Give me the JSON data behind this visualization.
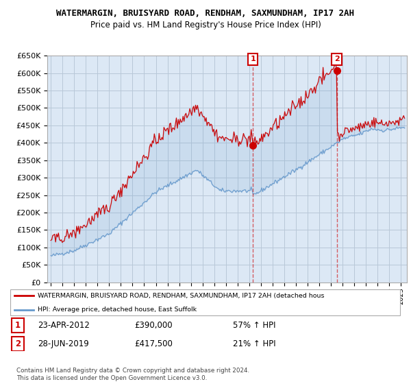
{
  "title": "WATERMARGIN, BRUISYARD ROAD, RENDHAM, SAXMUNDHAM, IP17 2AH",
  "subtitle": "Price paid vs. HM Land Registry's House Price Index (HPI)",
  "ylim": [
    0,
    650000
  ],
  "yticks": [
    0,
    50000,
    100000,
    150000,
    200000,
    250000,
    300000,
    350000,
    400000,
    450000,
    500000,
    550000,
    600000,
    650000
  ],
  "bg_color": "#ffffff",
  "plot_bg_color": "#dce8f5",
  "grid_color": "#b8c8d8",
  "red_color": "#cc0000",
  "blue_color": "#6699cc",
  "transaction1": {
    "date_num": 2012.31,
    "price": 390000,
    "label": "1",
    "date_str": "23-APR-2012",
    "pct": "57% ↑ HPI"
  },
  "transaction2": {
    "date_num": 2019.49,
    "price": 417500,
    "label": "2",
    "date_str": "28-JUN-2019",
    "pct": "21% ↑ HPI"
  },
  "legend_line1": "WATERMARGIN, BRUISYARD ROAD, RENDHAM, SAXMUNDHAM, IP17 2AH (detached hous",
  "legend_line2": "HPI: Average price, detached house, East Suffolk",
  "footer": "Contains HM Land Registry data © Crown copyright and database right 2024.\nThis data is licensed under the Open Government Licence v3.0.",
  "xlim_start": 1994.7,
  "xlim_end": 2025.5
}
